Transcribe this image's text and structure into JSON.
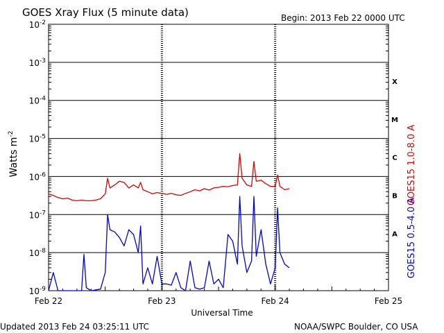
{
  "header": {
    "title": "GOES Xray Flux (5 minute data)",
    "begin": "Begin:  2013 Feb 22 0000 UTC"
  },
  "footer": {
    "updated": "Updated 2013 Feb 24 03:25:11 UTC",
    "credit": "NOAA/SWPC Boulder, CO USA"
  },
  "colors": {
    "long": "#dd0000",
    "short": "#0000dd",
    "axis": "#000000"
  },
  "chart_data": {
    "type": "line",
    "title": "GOES Xray Flux (5 minute data)",
    "xlabel": "Universal Time",
    "ylabel": "Watts m",
    "ylabel_sup": "-2",
    "yscale": "log",
    "ylim": [
      1e-09,
      0.01
    ],
    "xlim": [
      "2013-02-22T00:00",
      "2013-02-25T00:00"
    ],
    "grid": true,
    "ytick_labels": [
      {
        "value": 1e-09,
        "base": "10",
        "exp": "-9"
      },
      {
        "value": 1e-08,
        "base": "10",
        "exp": "-8"
      },
      {
        "value": 1e-07,
        "base": "10",
        "exp": "-7"
      },
      {
        "value": 1e-06,
        "base": "10",
        "exp": "-6"
      },
      {
        "value": 1e-05,
        "base": "10",
        "exp": "-5"
      },
      {
        "value": 0.0001,
        "base": "10",
        "exp": "-4"
      },
      {
        "value": 0.001,
        "base": "10",
        "exp": "-3"
      },
      {
        "value": 0.01,
        "base": "10",
        "exp": "-2"
      }
    ],
    "xtick_labels": [
      {
        "value": "2013-02-22T00:00",
        "label": "Feb 22"
      },
      {
        "value": "2013-02-23T00:00",
        "label": "Feb 23"
      },
      {
        "value": "2013-02-24T00:00",
        "label": "Feb 24"
      },
      {
        "value": "2013-02-25T00:00",
        "label": "Feb 25"
      }
    ],
    "flare_classes": [
      {
        "label": "A",
        "value": 3.2e-08
      },
      {
        "label": "B",
        "value": 3.2e-07
      },
      {
        "label": "C",
        "value": 3.2e-06
      },
      {
        "label": "M",
        "value": 3.2e-05
      },
      {
        "label": "X",
        "value": 0.00032
      }
    ],
    "series": [
      {
        "name": "GOES15 1.0-8.0 A",
        "x": [
          "2013-02-22T00:00",
          "2013-02-22T01:00",
          "2013-02-22T02:00",
          "2013-02-22T03:00",
          "2013-02-22T04:00",
          "2013-02-22T05:00",
          "2013-02-22T06:00",
          "2013-02-22T07:00",
          "2013-02-22T08:00",
          "2013-02-22T09:00",
          "2013-02-22T10:00",
          "2013-02-22T11:00",
          "2013-02-22T12:00",
          "2013-02-22T12:30",
          "2013-02-22T13:00",
          "2013-02-22T14:00",
          "2013-02-22T15:00",
          "2013-02-22T16:00",
          "2013-02-22T17:00",
          "2013-02-22T18:00",
          "2013-02-22T19:00",
          "2013-02-22T19:30",
          "2013-02-22T20:00",
          "2013-02-22T21:00",
          "2013-02-22T22:00",
          "2013-02-22T23:00",
          "2013-02-23T00:00",
          "2013-02-23T01:00",
          "2013-02-23T02:00",
          "2013-02-23T03:00",
          "2013-02-23T04:00",
          "2013-02-23T05:00",
          "2013-02-23T06:00",
          "2013-02-23T07:00",
          "2013-02-23T08:00",
          "2013-02-23T09:00",
          "2013-02-23T10:00",
          "2013-02-23T11:00",
          "2013-02-23T12:00",
          "2013-02-23T13:00",
          "2013-02-23T14:00",
          "2013-02-23T15:00",
          "2013-02-23T16:00",
          "2013-02-23T16:30",
          "2013-02-23T17:00",
          "2013-02-23T18:00",
          "2013-02-23T19:00",
          "2013-02-23T19:30",
          "2013-02-23T20:00",
          "2013-02-23T21:00",
          "2013-02-23T22:00",
          "2013-02-23T23:00",
          "2013-02-24T00:00",
          "2013-02-24T00:30",
          "2013-02-24T01:00",
          "2013-02-24T02:00",
          "2013-02-24T03:00"
        ],
        "y": [
          3.5e-07,
          3.2e-07,
          2.8e-07,
          2.6e-07,
          2.7e-07,
          2.4e-07,
          2.3e-07,
          2.4e-07,
          2.3e-07,
          2.3e-07,
          2.4e-07,
          2.6e-07,
          3.5e-07,
          9e-07,
          5e-07,
          6e-07,
          7.5e-07,
          7e-07,
          5e-07,
          6e-07,
          5e-07,
          7e-07,
          4.5e-07,
          4e-07,
          3.5e-07,
          3.8e-07,
          3.6e-07,
          3.4e-07,
          3.6e-07,
          3.3e-07,
          3.2e-07,
          3.6e-07,
          4e-07,
          4.5e-07,
          4.2e-07,
          4.8e-07,
          4.4e-07,
          5e-07,
          5.2e-07,
          5.5e-07,
          5.4e-07,
          5.8e-07,
          6e-07,
          4e-06,
          9e-07,
          6e-07,
          5.5e-07,
          2.5e-06,
          7.5e-07,
          8e-07,
          6.5e-07,
          5.5e-07,
          5.5e-07,
          1.1e-06,
          5.5e-07,
          4.5e-07,
          4.8e-07
        ]
      },
      {
        "name": "GOES15 0.5-4.0 A",
        "x": [
          "2013-02-22T00:00",
          "2013-02-22T01:00",
          "2013-02-22T02:00",
          "2013-02-22T03:00",
          "2013-02-22T05:00",
          "2013-02-22T07:00",
          "2013-02-22T07:30",
          "2013-02-22T08:00",
          "2013-02-22T09:00",
          "2013-02-22T11:00",
          "2013-02-22T12:00",
          "2013-02-22T12:30",
          "2013-02-22T13:00",
          "2013-02-22T14:00",
          "2013-02-22T15:00",
          "2013-02-22T16:00",
          "2013-02-22T17:00",
          "2013-02-22T18:00",
          "2013-02-22T19:00",
          "2013-02-22T19:30",
          "2013-02-22T20:00",
          "2013-02-22T21:00",
          "2013-02-22T22:00",
          "2013-02-22T23:00",
          "2013-02-23T00:00",
          "2013-02-23T01:00",
          "2013-02-23T02:00",
          "2013-02-23T03:00",
          "2013-02-23T04:00",
          "2013-02-23T05:00",
          "2013-02-23T06:00",
          "2013-02-23T07:00",
          "2013-02-23T08:00",
          "2013-02-23T09:00",
          "2013-02-23T10:00",
          "2013-02-23T11:00",
          "2013-02-23T12:00",
          "2013-02-23T13:00",
          "2013-02-23T14:00",
          "2013-02-23T15:00",
          "2013-02-23T16:00",
          "2013-02-23T16:30",
          "2013-02-23T17:00",
          "2013-02-23T18:00",
          "2013-02-23T19:00",
          "2013-02-23T19:30",
          "2013-02-23T20:00",
          "2013-02-23T21:00",
          "2013-02-23T22:00",
          "2013-02-23T23:00",
          "2013-02-24T00:00",
          "2013-02-24T00:30",
          "2013-02-24T01:00",
          "2013-02-24T02:00",
          "2013-02-24T03:00"
        ],
        "y": [
          1e-09,
          3e-09,
          1e-09,
          1e-09,
          1e-09,
          1e-09,
          9e-09,
          1.2e-09,
          1e-09,
          1.1e-09,
          3e-09,
          1e-07,
          4e-08,
          3.5e-08,
          2.5e-08,
          1.5e-08,
          4e-08,
          3e-08,
          1e-08,
          5e-08,
          1.5e-09,
          4e-09,
          1.5e-09,
          8e-09,
          1.5e-09,
          1.5e-09,
          1.4e-09,
          3e-09,
          1.2e-09,
          1e-09,
          6e-09,
          1.2e-09,
          1.1e-09,
          1.2e-09,
          6e-09,
          1.5e-09,
          2e-09,
          1.2e-09,
          3e-08,
          2e-08,
          5e-09,
          3e-07,
          1.5e-08,
          3e-09,
          6e-09,
          3e-07,
          8e-09,
          4e-08,
          5e-09,
          1.5e-09,
          4e-09,
          1.5e-07,
          1e-08,
          5e-09,
          4e-09
        ]
      }
    ]
  }
}
